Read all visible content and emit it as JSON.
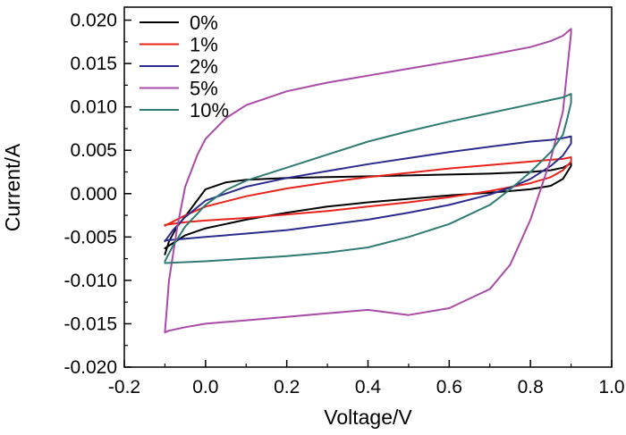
{
  "chart_data": {
    "type": "line",
    "title": "",
    "xlabel": "Voltage/V",
    "ylabel": "Current/A",
    "xlim": [
      -0.2,
      1.0
    ],
    "ylim": [
      -0.02,
      0.0215
    ],
    "x_ticks": [
      -0.2,
      0.0,
      0.2,
      0.4,
      0.6,
      0.8,
      1.0
    ],
    "x_tick_labels": [
      "-0.2",
      "0.0",
      "0.2",
      "0.4",
      "0.6",
      "0.8",
      "1.0"
    ],
    "y_ticks": [
      0.02,
      0.015,
      0.01,
      0.005,
      0.0,
      -0.005,
      -0.01,
      -0.015,
      -0.02
    ],
    "y_tick_labels": [
      "0.020",
      "0.015",
      "0.010",
      "0.005",
      "0.000",
      "-0.005",
      "-0.010",
      "-0.015",
      "-0.020"
    ],
    "grid": false,
    "legend_position": "top-left",
    "series": [
      {
        "name": "0%",
        "color": "#000000",
        "x": [
          -0.1,
          -0.09,
          -0.07,
          -0.04,
          0.0,
          0.05,
          0.1,
          0.2,
          0.3,
          0.4,
          0.5,
          0.6,
          0.7,
          0.8,
          0.85,
          0.88,
          0.9,
          0.9,
          0.88,
          0.85,
          0.8,
          0.75,
          0.7,
          0.6,
          0.5,
          0.4,
          0.3,
          0.2,
          0.1,
          0.0,
          -0.05,
          -0.08,
          -0.1
        ],
        "y": [
          -0.007,
          -0.0055,
          -0.0038,
          -0.002,
          0.0005,
          0.0013,
          0.0016,
          0.0018,
          0.0019,
          0.002,
          0.0021,
          0.0022,
          0.0023,
          0.0025,
          0.0027,
          0.003,
          0.0035,
          0.0032,
          0.0017,
          0.0009,
          0.0005,
          0.0003,
          0.0001,
          -0.0002,
          -0.0006,
          -0.001,
          -0.0015,
          -0.0022,
          -0.003,
          -0.004,
          -0.0048,
          -0.0057,
          -0.0063
        ]
      },
      {
        "name": "1%",
        "color": "#e8231b",
        "x": [
          -0.1,
          -0.05,
          0.0,
          0.1,
          0.2,
          0.3,
          0.4,
          0.5,
          0.6,
          0.7,
          0.8,
          0.85,
          0.88,
          0.9,
          0.9,
          0.88,
          0.85,
          0.8,
          0.7,
          0.6,
          0.5,
          0.4,
          0.3,
          0.2,
          0.1,
          0.0,
          -0.05,
          -0.1
        ],
        "y": [
          -0.0037,
          -0.0025,
          -0.0015,
          -0.0003,
          0.0006,
          0.0013,
          0.0019,
          0.0024,
          0.0029,
          0.0033,
          0.0037,
          0.0039,
          0.004,
          0.0042,
          0.0037,
          0.0027,
          0.0019,
          0.0012,
          0.0003,
          -0.0004,
          -0.001,
          -0.0015,
          -0.002,
          -0.0024,
          -0.0028,
          -0.0031,
          -0.0033,
          -0.0036
        ]
      },
      {
        "name": "2%",
        "color": "#2b2b8e",
        "x": [
          -0.1,
          -0.08,
          -0.05,
          0.0,
          0.1,
          0.2,
          0.3,
          0.4,
          0.5,
          0.6,
          0.7,
          0.8,
          0.85,
          0.88,
          0.9,
          0.9,
          0.88,
          0.85,
          0.8,
          0.75,
          0.7,
          0.6,
          0.5,
          0.4,
          0.3,
          0.2,
          0.1,
          0.0,
          -0.05,
          -0.1
        ],
        "y": [
          -0.0055,
          -0.0042,
          -0.0027,
          -0.0008,
          0.0008,
          0.0018,
          0.0026,
          0.0034,
          0.0041,
          0.0048,
          0.0054,
          0.006,
          0.0062,
          0.0064,
          0.0066,
          0.0058,
          0.0044,
          0.0032,
          0.0017,
          0.0007,
          -0.0001,
          -0.0013,
          -0.0022,
          -0.003,
          -0.0036,
          -0.0042,
          -0.0046,
          -0.005,
          -0.0052,
          -0.0054
        ]
      },
      {
        "name": "5%",
        "color": "#a94aa6",
        "x": [
          -0.1,
          -0.09,
          -0.07,
          -0.05,
          -0.02,
          0.0,
          0.05,
          0.1,
          0.2,
          0.3,
          0.4,
          0.5,
          0.6,
          0.7,
          0.8,
          0.85,
          0.88,
          0.9,
          0.9,
          0.89,
          0.88,
          0.85,
          0.8,
          0.75,
          0.7,
          0.6,
          0.5,
          0.4,
          0.3,
          0.2,
          0.1,
          0.0,
          -0.05,
          -0.09,
          -0.1
        ],
        "y": [
          -0.016,
          -0.01,
          -0.004,
          0.0008,
          0.0045,
          0.0063,
          0.0087,
          0.0102,
          0.0118,
          0.0128,
          0.0136,
          0.0144,
          0.0152,
          0.016,
          0.0169,
          0.0176,
          0.0182,
          0.019,
          0.0185,
          0.014,
          0.0095,
          0.004,
          -0.003,
          -0.0082,
          -0.011,
          -0.0132,
          -0.014,
          -0.0134,
          -0.0138,
          -0.0142,
          -0.0146,
          -0.015,
          -0.0154,
          -0.0158,
          -0.016
        ]
      },
      {
        "name": "10%",
        "color": "#2f7a72",
        "x": [
          -0.1,
          -0.08,
          -0.05,
          0.0,
          0.05,
          0.1,
          0.2,
          0.3,
          0.4,
          0.5,
          0.6,
          0.7,
          0.8,
          0.85,
          0.88,
          0.9,
          0.9,
          0.89,
          0.88,
          0.85,
          0.8,
          0.75,
          0.7,
          0.6,
          0.5,
          0.4,
          0.3,
          0.2,
          0.1,
          0.0,
          -0.05,
          -0.1
        ],
        "y": [
          -0.0078,
          -0.006,
          -0.0038,
          -0.0013,
          0.0004,
          0.0015,
          0.003,
          0.0045,
          0.006,
          0.0072,
          0.0083,
          0.0093,
          0.0103,
          0.0108,
          0.0111,
          0.0115,
          0.0105,
          0.0085,
          0.0068,
          0.0048,
          0.0025,
          0.0005,
          -0.0013,
          -0.0035,
          -0.005,
          -0.0062,
          -0.0068,
          -0.0072,
          -0.0075,
          -0.0078,
          -0.0079,
          -0.008
        ]
      }
    ]
  }
}
